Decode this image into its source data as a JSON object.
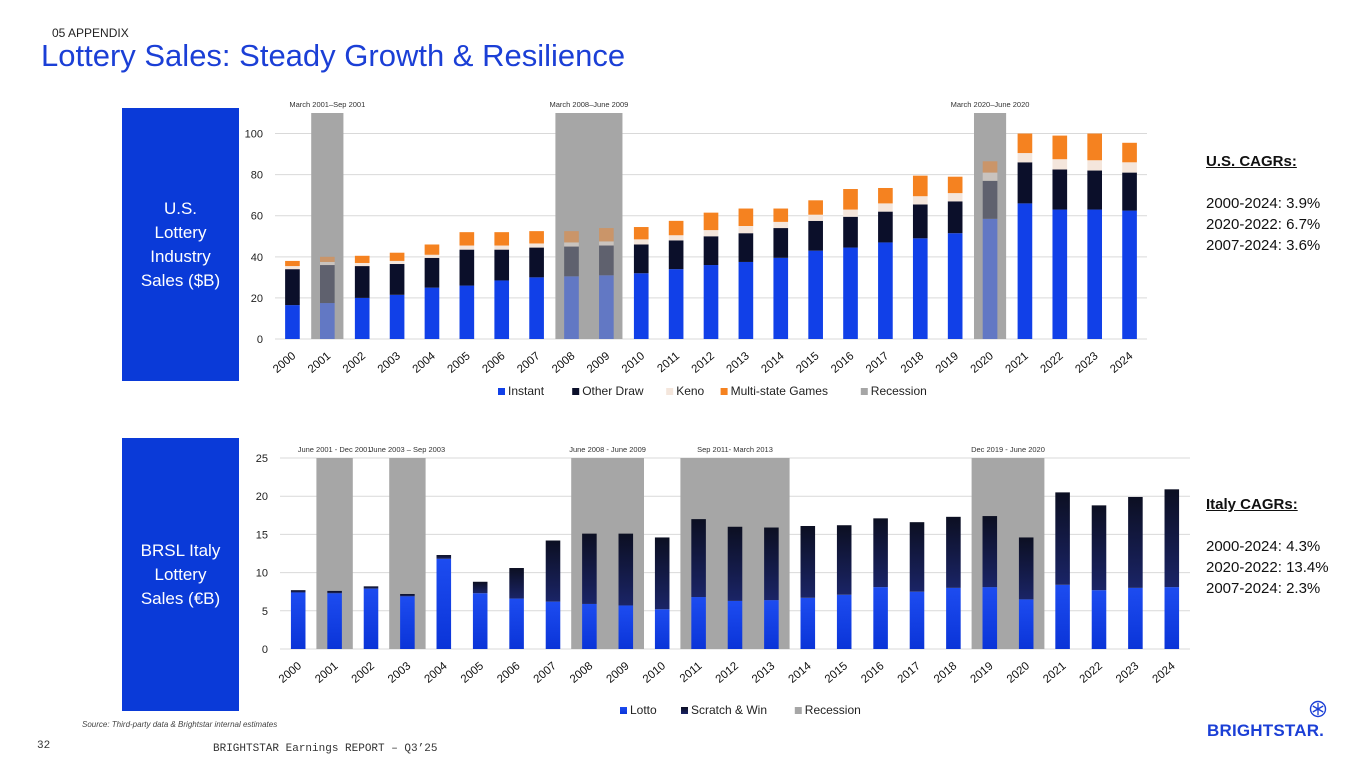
{
  "header": {
    "section": "05 APPENDIX",
    "title": "Lottery Sales: Steady Growth & Resilience"
  },
  "us_box": {
    "lines": [
      "U.S.",
      "Lottery",
      "Industry",
      "Sales ($B)"
    ]
  },
  "italy_box": {
    "lines": [
      "BRSL Italy",
      "Lottery",
      "Sales (€B)"
    ]
  },
  "us_cagr": {
    "heading": "U.S. CAGRs:",
    "lines": [
      "2000-2024: 3.9%",
      "2020-2022: 6.7%",
      "2007-2024: 3.6%"
    ]
  },
  "italy_cagr": {
    "heading": "Italy CAGRs:",
    "lines": [
      "2000-2024: 4.3%",
      "2020-2022: 13.4%",
      "2007-2024: 2.3%"
    ]
  },
  "footer": {
    "source": "Source: Third-party data & Brightstar internal estimates",
    "page": "32",
    "report": "BRIGHTSTAR Earnings REPORT – Q3’25",
    "logo": "BRIGHTSTAR."
  },
  "colors": {
    "brand": "#0a3ad8",
    "instant": "#1140e8",
    "other_draw": "#0b0f2a",
    "keno": "#f4e6dc",
    "multistate": "#f58220",
    "recession": "#a6a6a6"
  },
  "chart_data": [
    {
      "type": "bar",
      "stacked": true,
      "title": "U.S. Lottery Industry Sales ($B)",
      "categories": [
        "2000",
        "2001",
        "2002",
        "2003",
        "2004",
        "2005",
        "2006",
        "2007",
        "2008",
        "2009",
        "2010",
        "2011",
        "2012",
        "2013",
        "2014",
        "2015",
        "2016",
        "2017",
        "2018",
        "2019",
        "2020",
        "2021",
        "2022",
        "2023",
        "2024"
      ],
      "series": [
        {
          "name": "Instant",
          "values": [
            16.5,
            17.5,
            20,
            21.5,
            25,
            26,
            28.5,
            30,
            30.5,
            31,
            32,
            34,
            36,
            37.5,
            39.5,
            43,
            44.5,
            47,
            49,
            51.5,
            58.5,
            66,
            63,
            63,
            62.5
          ]
        },
        {
          "name": "Other Draw",
          "values": [
            17.5,
            18.5,
            15.5,
            15,
            14.5,
            17.5,
            15,
            14.5,
            14.5,
            14.5,
            14,
            14,
            14,
            14,
            14.5,
            14.5,
            15,
            15,
            16.5,
            15.5,
            18.5,
            20,
            19.5,
            19,
            18.5
          ]
        },
        {
          "name": "Keno",
          "values": [
            1.5,
            1.5,
            1.5,
            1.5,
            1.5,
            2,
            2,
            2,
            2,
            2,
            2.5,
            2.5,
            3,
            3.5,
            3,
            3,
            3.5,
            4,
            4,
            4,
            4,
            4.5,
            5,
            5,
            5
          ]
        },
        {
          "name": "Multi-state Games",
          "values": [
            2.5,
            2.5,
            3.5,
            4,
            5,
            6.5,
            6.5,
            6,
            5.5,
            6.5,
            6,
            7,
            8.5,
            8.5,
            6.5,
            7,
            10,
            7.5,
            10,
            8,
            5.5,
            9.5,
            11.5,
            13,
            9.5
          ]
        }
      ],
      "recessions": [
        {
          "label": "March 2001–Sep 2001",
          "years": [
            "2001"
          ]
        },
        {
          "label": "March 2008–June 2009",
          "years": [
            "2008",
            "2009"
          ]
        },
        {
          "label": "March 2020–June 2020",
          "years": [
            "2020"
          ]
        }
      ],
      "legend": [
        "Instant",
        "Other Draw",
        "Keno",
        "Multi-state Games",
        "Recession"
      ],
      "yticks": [
        "0",
        "20",
        "40",
        "60",
        "80",
        "100"
      ],
      "ylim": [
        0,
        110
      ]
    },
    {
      "type": "bar",
      "stacked": true,
      "title": "BRSL Italy Lottery Sales (€B)",
      "categories": [
        "2000",
        "2001",
        "2002",
        "2003",
        "2004",
        "2005",
        "2006",
        "2007",
        "2008",
        "2009",
        "2010",
        "2011",
        "2012",
        "2013",
        "2014",
        "2015",
        "2016",
        "2017",
        "2018",
        "2019",
        "2020",
        "2021",
        "2022",
        "2023",
        "2024"
      ],
      "series": [
        {
          "name": "Lotto",
          "values": [
            7.4,
            7.3,
            7.9,
            6.9,
            11.8,
            7.3,
            6.6,
            6.2,
            5.9,
            5.7,
            5.2,
            6.8,
            6.3,
            6.4,
            6.7,
            7.1,
            8.1,
            7.5,
            8,
            8.1,
            6.5,
            8.4,
            7.7,
            8,
            8.1
          ]
        },
        {
          "name": "Scratch & Win",
          "values": [
            0.3,
            0.3,
            0.3,
            0.3,
            0.5,
            1.5,
            4,
            8,
            9.2,
            9.4,
            9.4,
            10.2,
            9.7,
            9.5,
            9.4,
            9.1,
            9,
            9.1,
            9.3,
            9.3,
            8.1,
            12.1,
            11.1,
            11.9,
            12.8
          ]
        }
      ],
      "recessions": [
        {
          "label": "June 2001 - Dec 2001",
          "years": [
            "2001"
          ]
        },
        {
          "label": "June 2003 – Sep 2003",
          "years": [
            "2003"
          ]
        },
        {
          "label": "June 2008 - June 2009",
          "years": [
            "2008",
            "2009"
          ]
        },
        {
          "label": "Sep 2011- March 2013",
          "years": [
            "2011",
            "2012",
            "2013"
          ]
        },
        {
          "label": "Dec 2019 - June 2020",
          "years": [
            "2019",
            "2020"
          ]
        }
      ],
      "legend": [
        "Lotto",
        "Scratch & Win",
        "Recession"
      ],
      "yticks": [
        "0",
        "5",
        "10",
        "15",
        "20",
        "25"
      ],
      "ylim": [
        0,
        25
      ]
    }
  ]
}
